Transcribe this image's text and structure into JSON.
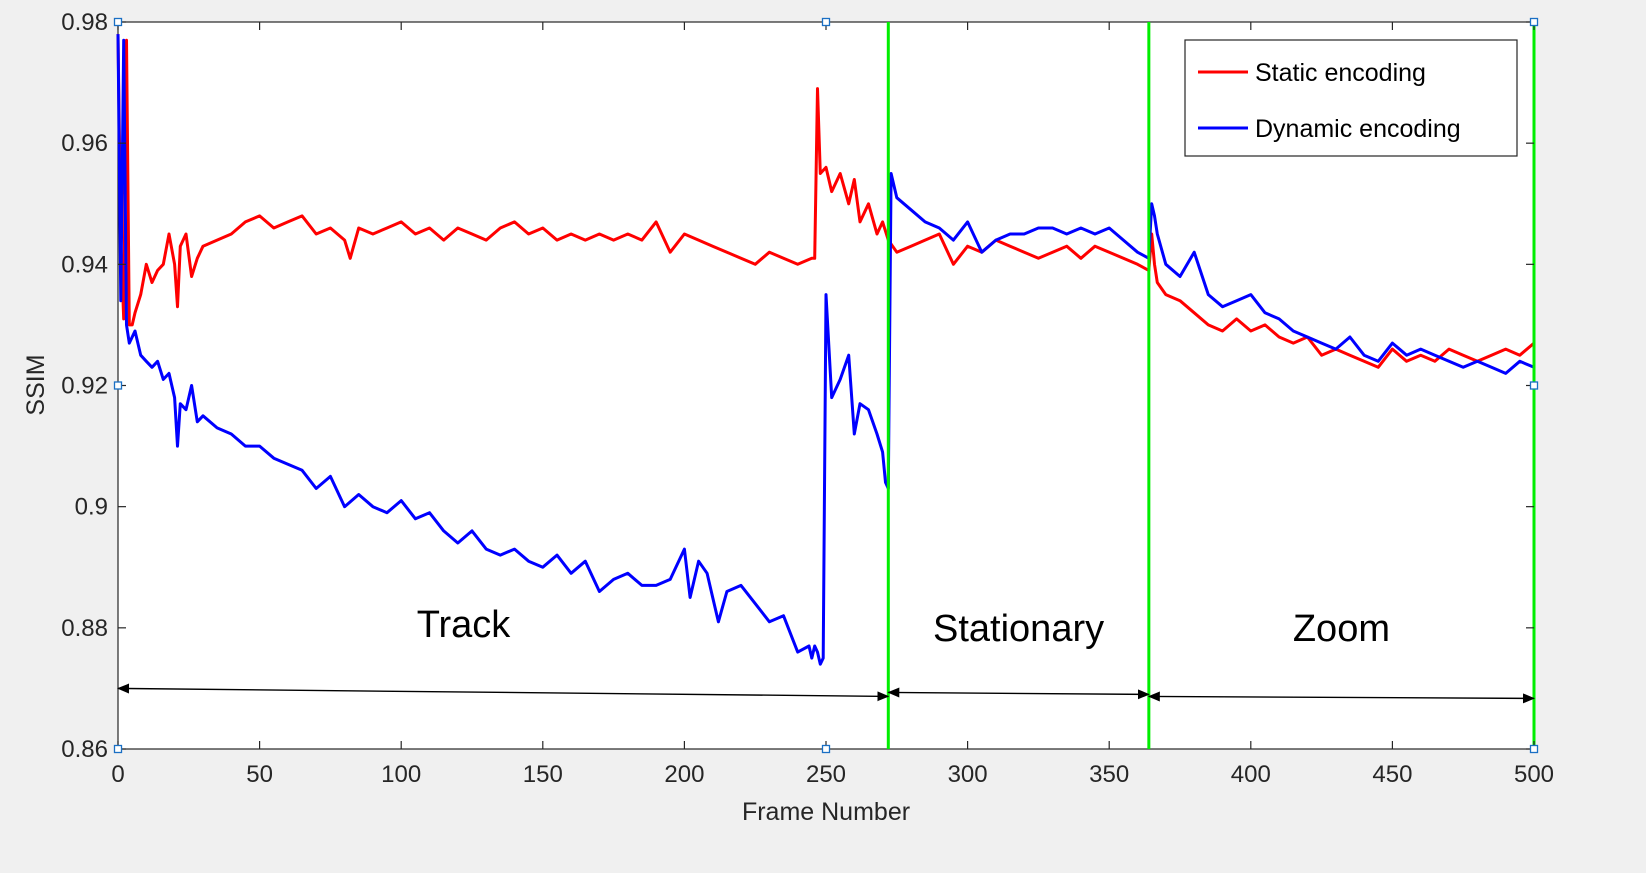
{
  "chart_data": {
    "type": "line",
    "title": "",
    "xlabel": "Frame Number",
    "ylabel": "SSIM",
    "xlim": [
      0,
      500
    ],
    "ylim": [
      0.86,
      0.98
    ],
    "xticks": [
      "0",
      "50",
      "100",
      "150",
      "200",
      "250",
      "300",
      "350",
      "400",
      "450",
      "500"
    ],
    "yticks": [
      "0.86",
      "0.88",
      "0.9",
      "0.92",
      "0.94",
      "0.96",
      "0.98"
    ],
    "grid": false,
    "legend_position": "top-right",
    "colors": {
      "static": "#ff0000",
      "dynamic": "#0000ff",
      "marker": "#00ee00",
      "axis": "#262626"
    },
    "series": [
      {
        "name": "Static encoding",
        "x": [
          0,
          1,
          2,
          3,
          4,
          5,
          6,
          8,
          10,
          12,
          14,
          16,
          18,
          20,
          21,
          22,
          24,
          26,
          28,
          30,
          35,
          40,
          45,
          50,
          55,
          60,
          65,
          70,
          75,
          80,
          82,
          85,
          90,
          95,
          100,
          105,
          110,
          115,
          120,
          125,
          130,
          135,
          140,
          145,
          150,
          155,
          160,
          165,
          170,
          175,
          180,
          185,
          190,
          195,
          200,
          205,
          210,
          215,
          220,
          225,
          230,
          235,
          240,
          245,
          246,
          247,
          248,
          250,
          252,
          255,
          258,
          260,
          262,
          265,
          268,
          270,
          272,
          275,
          280,
          285,
          290,
          295,
          300,
          305,
          310,
          315,
          320,
          325,
          330,
          335,
          340,
          345,
          350,
          355,
          360,
          364,
          365,
          366,
          367,
          370,
          375,
          380,
          385,
          390,
          395,
          400,
          405,
          410,
          415,
          420,
          425,
          430,
          435,
          440,
          445,
          450,
          455,
          460,
          465,
          470,
          475,
          480,
          485,
          490,
          495,
          500
        ],
        "values": [
          0.978,
          0.944,
          0.931,
          0.977,
          0.93,
          0.93,
          0.932,
          0.935,
          0.94,
          0.937,
          0.939,
          0.94,
          0.945,
          0.94,
          0.933,
          0.943,
          0.945,
          0.938,
          0.941,
          0.943,
          0.944,
          0.945,
          0.947,
          0.948,
          0.946,
          0.947,
          0.948,
          0.945,
          0.946,
          0.944,
          0.941,
          0.946,
          0.945,
          0.946,
          0.947,
          0.945,
          0.946,
          0.944,
          0.946,
          0.945,
          0.944,
          0.946,
          0.947,
          0.945,
          0.946,
          0.944,
          0.945,
          0.944,
          0.945,
          0.944,
          0.945,
          0.944,
          0.947,
          0.942,
          0.945,
          0.944,
          0.943,
          0.942,
          0.941,
          0.94,
          0.942,
          0.941,
          0.94,
          0.941,
          0.941,
          0.969,
          0.955,
          0.956,
          0.952,
          0.955,
          0.95,
          0.954,
          0.947,
          0.95,
          0.945,
          0.947,
          0.944,
          0.942,
          0.943,
          0.944,
          0.945,
          0.94,
          0.943,
          0.942,
          0.944,
          0.943,
          0.942,
          0.941,
          0.942,
          0.943,
          0.941,
          0.943,
          0.942,
          0.941,
          0.94,
          0.939,
          0.945,
          0.94,
          0.937,
          0.935,
          0.934,
          0.932,
          0.93,
          0.929,
          0.931,
          0.929,
          0.93,
          0.928,
          0.927,
          0.928,
          0.925,
          0.926,
          0.925,
          0.924,
          0.923,
          0.926,
          0.924,
          0.925,
          0.924,
          0.926,
          0.925,
          0.924,
          0.925,
          0.926,
          0.925,
          0.927
        ]
      },
      {
        "name": "Dynamic encoding",
        "x": [
          0,
          1,
          2,
          3,
          4,
          5,
          6,
          8,
          10,
          12,
          14,
          16,
          18,
          20,
          21,
          22,
          24,
          26,
          28,
          30,
          35,
          40,
          45,
          50,
          55,
          60,
          65,
          70,
          75,
          80,
          85,
          90,
          95,
          100,
          105,
          110,
          115,
          120,
          125,
          130,
          135,
          140,
          145,
          150,
          155,
          160,
          165,
          170,
          175,
          180,
          185,
          190,
          195,
          200,
          202,
          205,
          208,
          210,
          212,
          215,
          220,
          225,
          230,
          235,
          240,
          244,
          245,
          246,
          247,
          248,
          249,
          250,
          252,
          255,
          258,
          260,
          262,
          265,
          268,
          270,
          271,
          272,
          273,
          275,
          280,
          285,
          290,
          295,
          300,
          305,
          310,
          315,
          320,
          325,
          330,
          335,
          340,
          345,
          350,
          355,
          360,
          364,
          365,
          366,
          367,
          370,
          375,
          380,
          385,
          390,
          395,
          400,
          405,
          410,
          415,
          420,
          425,
          430,
          435,
          440,
          445,
          450,
          455,
          460,
          465,
          470,
          475,
          480,
          485,
          490,
          495,
          500
        ],
        "values": [
          0.978,
          0.934,
          0.977,
          0.93,
          0.927,
          0.928,
          0.929,
          0.925,
          0.924,
          0.923,
          0.924,
          0.921,
          0.922,
          0.918,
          0.91,
          0.917,
          0.916,
          0.92,
          0.914,
          0.915,
          0.913,
          0.912,
          0.91,
          0.91,
          0.908,
          0.907,
          0.906,
          0.903,
          0.905,
          0.9,
          0.902,
          0.9,
          0.899,
          0.901,
          0.898,
          0.899,
          0.896,
          0.894,
          0.896,
          0.893,
          0.892,
          0.893,
          0.891,
          0.89,
          0.892,
          0.889,
          0.891,
          0.886,
          0.888,
          0.889,
          0.887,
          0.887,
          0.888,
          0.893,
          0.885,
          0.891,
          0.889,
          0.885,
          0.881,
          0.886,
          0.887,
          0.884,
          0.881,
          0.882,
          0.876,
          0.877,
          0.875,
          0.877,
          0.876,
          0.874,
          0.875,
          0.935,
          0.918,
          0.921,
          0.925,
          0.912,
          0.917,
          0.916,
          0.912,
          0.909,
          0.904,
          0.903,
          0.955,
          0.951,
          0.949,
          0.947,
          0.946,
          0.944,
          0.947,
          0.942,
          0.944,
          0.945,
          0.945,
          0.946,
          0.946,
          0.945,
          0.946,
          0.945,
          0.946,
          0.944,
          0.942,
          0.941,
          0.95,
          0.948,
          0.945,
          0.94,
          0.938,
          0.942,
          0.935,
          0.933,
          0.934,
          0.935,
          0.932,
          0.931,
          0.929,
          0.928,
          0.927,
          0.926,
          0.928,
          0.925,
          0.924,
          0.927,
          0.925,
          0.926,
          0.925,
          0.924,
          0.923,
          0.924,
          0.923,
          0.922,
          0.924,
          0.923
        ]
      }
    ],
    "region_markers": [
      272,
      364,
      500
    ],
    "annotations": [
      {
        "text": "Track",
        "x_center": 122,
        "y": 0.8785,
        "arrow": [
          0,
          272
        ]
      },
      {
        "text": "Stationary",
        "x_center": 318,
        "y": 0.8785,
        "arrow": [
          272,
          364
        ]
      },
      {
        "text": "Zoom",
        "x_center": 432,
        "y": 0.8785,
        "arrow": [
          364,
          500
        ]
      }
    ]
  }
}
